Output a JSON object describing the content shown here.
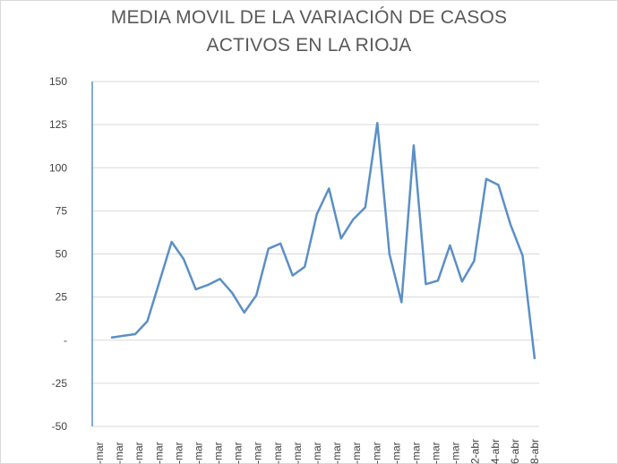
{
  "chart_data": {
    "type": "line",
    "title_lines": [
      "MEDIA MOVIL DE LA VARIACIÓN DE  CASOS",
      "ACTIVOS EN LA RIOJA"
    ],
    "xlabel": "",
    "ylabel": "",
    "ylim": [
      -50,
      150
    ],
    "yticks": [
      {
        "value": 150,
        "label": "150"
      },
      {
        "value": 125,
        "label": "125"
      },
      {
        "value": 100,
        "label": "100"
      },
      {
        "value": 75,
        "label": "75"
      },
      {
        "value": 50,
        "label": "50"
      },
      {
        "value": 25,
        "label": "25"
      },
      {
        "value": 0,
        "label": "-"
      },
      {
        "value": -25,
        "label": "-25"
      },
      {
        "value": -50,
        "label": "-50"
      }
    ],
    "grid": true,
    "line_color": "#5b8fc7",
    "x_labels": [
      "-mar",
      "-mar",
      "-mar",
      "-mar",
      "-mar",
      "-mar",
      "-mar",
      "-mar",
      "-mar",
      "-mar",
      "-mar",
      "-mar",
      "-mar",
      "-mar",
      "-mar",
      "-mar",
      "-mar",
      "-mar",
      "-mar",
      "2-abr",
      "4-abr",
      "6-abr",
      "8-abr"
    ],
    "series": [
      {
        "values": [
          1.5,
          2.5,
          3.5,
          11,
          34,
          57,
          47,
          29.5,
          32,
          35.5,
          27.5,
          16,
          26,
          53,
          56,
          37.5,
          42.5,
          73,
          88,
          59,
          70,
          77,
          126,
          50,
          22,
          113,
          32.5,
          34.5,
          55,
          34,
          46,
          93.5,
          90,
          67,
          49,
          -11
        ]
      }
    ]
  }
}
